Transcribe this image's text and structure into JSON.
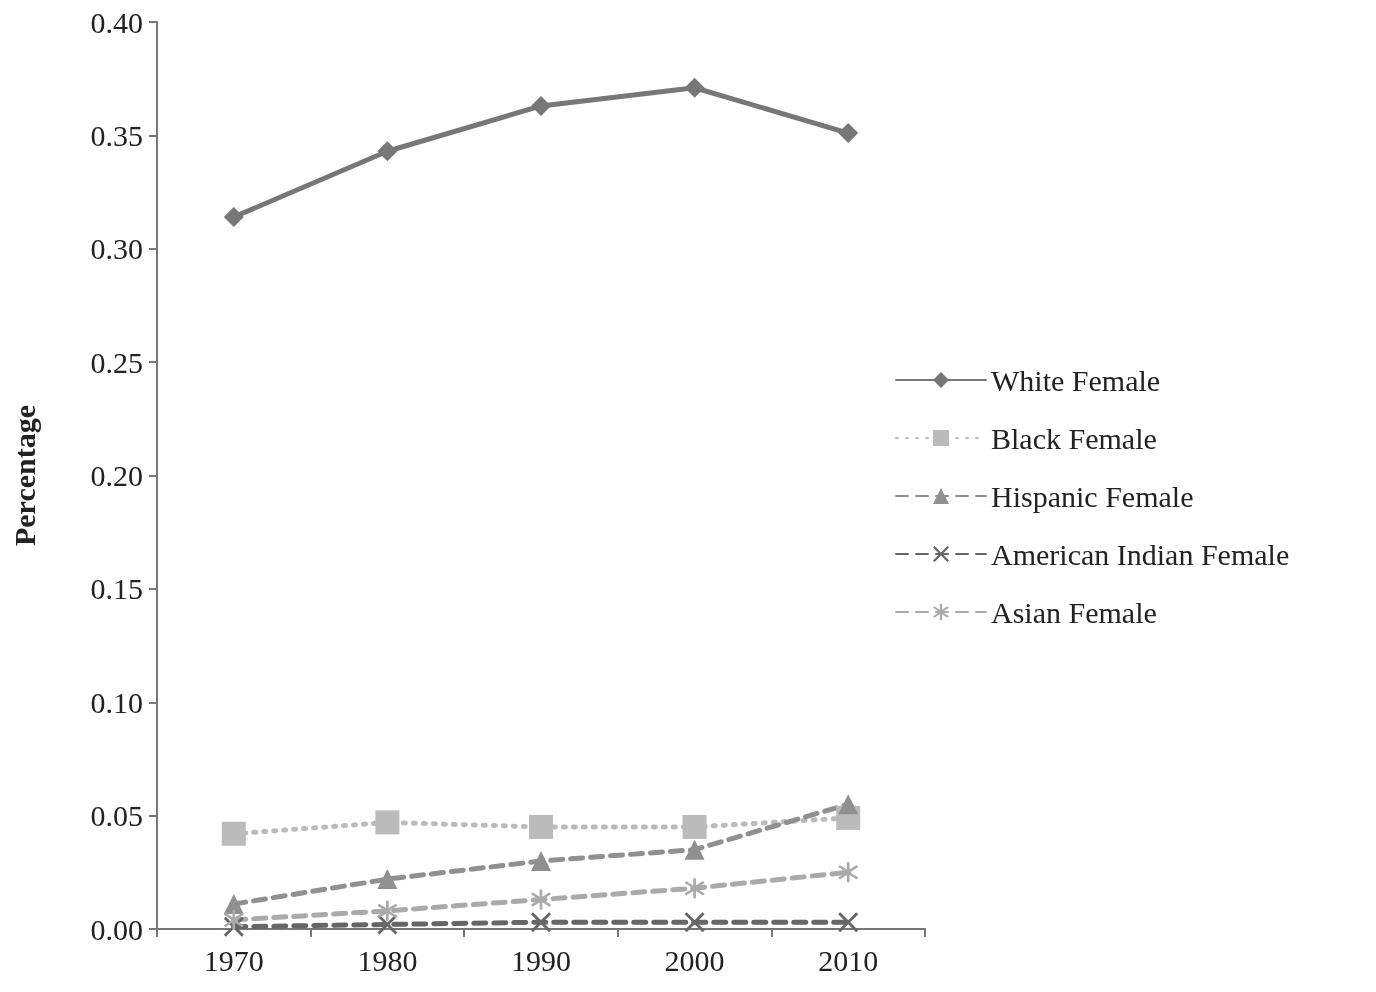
{
  "chart_data": {
    "type": "line",
    "ylabel": "Percentage",
    "categories": [
      "1970",
      "1980",
      "1990",
      "2000",
      "2010"
    ],
    "ylim": [
      0,
      0.4
    ],
    "yticks": [
      {
        "value": 0,
        "label": "0.00"
      },
      {
        "value": 0.05,
        "label": "0.05"
      },
      {
        "value": 0.1,
        "label": "0.10"
      },
      {
        "value": 0.15,
        "label": "0.15"
      },
      {
        "value": 0.2,
        "label": "0.20"
      },
      {
        "value": 0.25,
        "label": "0.25"
      },
      {
        "value": 0.3,
        "label": "0.30"
      },
      {
        "value": 0.35,
        "label": "0.35"
      },
      {
        "value": 0.4,
        "label": "0.40"
      }
    ],
    "grid": false,
    "legend": "right",
    "series": [
      {
        "name": "White Female",
        "color": "#777777",
        "marker": "diamond",
        "line_style": "solid",
        "values": [
          0.314,
          0.343,
          0.363,
          0.371,
          0.351
        ]
      },
      {
        "name": "Black Female",
        "color": "#bbbbbb",
        "marker": "square",
        "line_style": "dotted",
        "values": [
          0.042,
          0.047,
          0.045,
          0.045,
          0.049
        ]
      },
      {
        "name": "Hispanic Female",
        "color": "#909090",
        "marker": "triangle",
        "line_style": "dashed",
        "values": [
          0.011,
          0.022,
          0.03,
          0.035,
          0.055
        ]
      },
      {
        "name": "American Indian Female",
        "color": "#666666",
        "marker": "cross",
        "line_style": "dashed",
        "values": [
          0.001,
          0.002,
          0.003,
          0.003,
          0.003
        ]
      },
      {
        "name": "Asian Female",
        "color": "#aaaaaa",
        "marker": "star",
        "line_style": "dashed",
        "values": [
          0.004,
          0.008,
          0.013,
          0.018,
          0.025
        ]
      }
    ]
  }
}
